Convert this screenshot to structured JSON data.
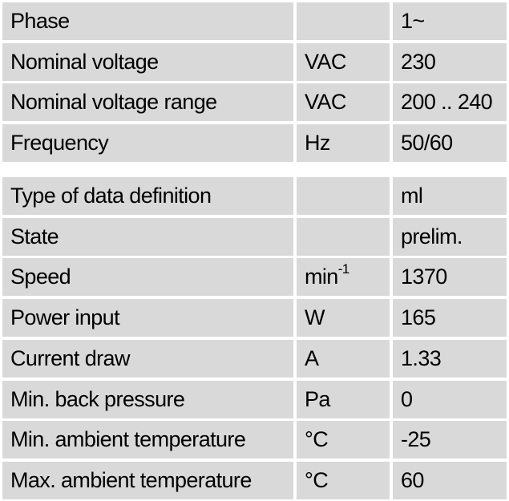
{
  "tables": [
    {
      "rows": [
        {
          "label": "Phase",
          "unit": null,
          "value": "1~"
        },
        {
          "label": "Nominal voltage",
          "unit": "VAC",
          "value": "230"
        },
        {
          "label": "Nominal voltage range",
          "unit": "VAC",
          "value": "200 .. 240"
        },
        {
          "label": "Frequency",
          "unit": "Hz",
          "value": "50/60"
        }
      ]
    },
    {
      "rows": [
        {
          "label": "Type of data definition",
          "unit": null,
          "value": "ml"
        },
        {
          "label": "State",
          "unit": null,
          "value": "prelim."
        },
        {
          "label": "Speed",
          "unit": "min",
          "unit_superscript": "-1",
          "value": "1370"
        },
        {
          "label": "Power input",
          "unit": "W",
          "value": "165"
        },
        {
          "label": "Current draw",
          "unit": "A",
          "value": "1.33"
        },
        {
          "label": "Min. back pressure",
          "unit": "Pa",
          "value": "0"
        },
        {
          "label": "Min. ambient temperature",
          "unit": "°C",
          "value": "-25"
        },
        {
          "label": "Max. ambient temperature",
          "unit": "°C",
          "value": "60"
        }
      ]
    }
  ]
}
